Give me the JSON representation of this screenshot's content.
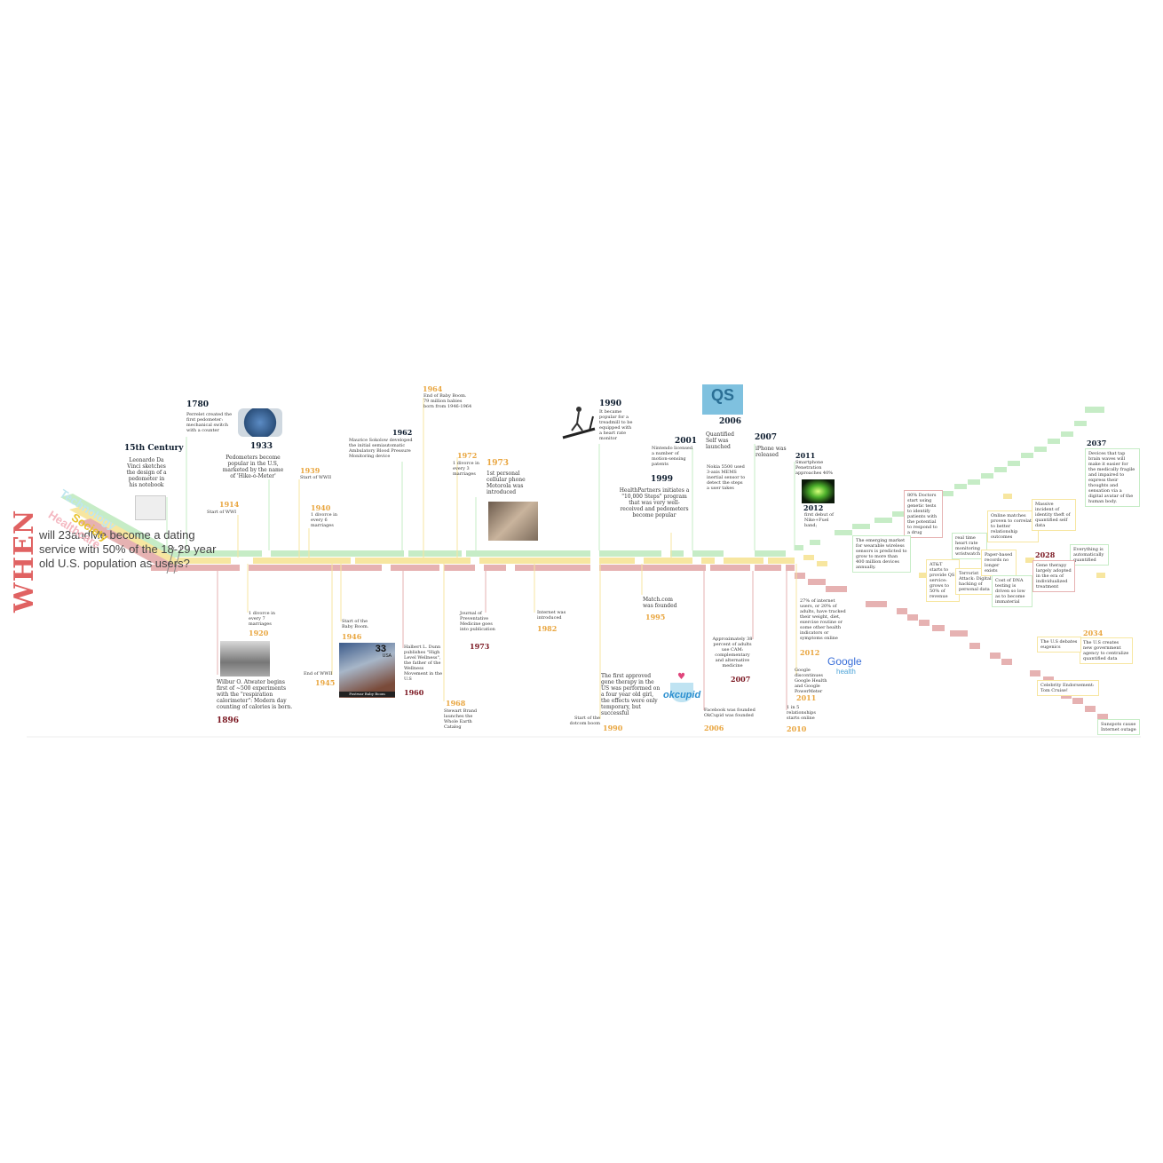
{
  "colors": {
    "technology": "#c6ecc6",
    "society": "#f7e6a0",
    "healthcare": "#e6b2b2",
    "title_red": "#e06262",
    "year_dark": "#0d1c2e",
    "year_orange": "#e9a640",
    "year_red": "#7a1620"
  },
  "title": {
    "when": "WHEN",
    "question": "will 23andMe become a dating service with 50% of the 18-29 year old U.S. population as users?"
  },
  "categories": {
    "technology": "Technology",
    "society": "Society",
    "healthcare": "Healthcare"
  },
  "events_top": [
    {
      "year": "15th Century",
      "text": "Leonardo Da Vinci sketches the design of a pedometer in his notebook"
    },
    {
      "year": "1780",
      "text": "Perrelet created the first pedometer: mechanical switch with a counter"
    },
    {
      "year": "1933",
      "text": "Pedometers become popular in the U.S, marketed by the name of 'Hike-o-Meter'"
    },
    {
      "year": "1914",
      "text": "Start of WWI"
    },
    {
      "year": "1939",
      "text": "Start of WWII"
    },
    {
      "year": "1940",
      "text": "1 divorce in every 6 marriages"
    },
    {
      "year": "1962",
      "text": "Maurice Sokolow developed the initial semiautomatic Ambulatory Blood Pressure Monitoring device"
    },
    {
      "year": "1964",
      "text": "End of Baby Boom. 79 million babies born from 1946-1964"
    },
    {
      "year": "1972",
      "text": "1 divorce in every 3 marriages"
    },
    {
      "year": "1973",
      "text": "1st personal cellular phone Motorola was introduced"
    },
    {
      "year": "1990",
      "text": "It became popular for a treadmill to be equipped with a heart rate monitor"
    },
    {
      "year": "1999",
      "text": "HealthPartners initiates a \"10,000 Steps\" program that was very well-received and pedometers become popular"
    },
    {
      "year": "2001",
      "text": "Nintendo licensed a number of motion-sensing patents"
    },
    {
      "year": "2006",
      "text": "Quantified Self was launched"
    },
    {
      "year": "",
      "text": "Nokia 5500 used 3-axis MEMS inertial sensor to detect the steps a user takes"
    },
    {
      "year": "2007",
      "text": "iPhone was released"
    },
    {
      "year": "2011",
      "text": "Smartphone Penetration approaches 40%"
    },
    {
      "year": "2012",
      "text": "first debut of Nike+Fuel band;"
    }
  ],
  "events_bottom": [
    {
      "year": "1920",
      "text": "1 divorce in every 7 marriages"
    },
    {
      "year": "1896",
      "text": "Wilbur O. Atwater begins first of ~500 experiments with the \"respiration calorimeter\": Modern day counting of calories is born."
    },
    {
      "year": "1946",
      "text": "Start of the Baby Boom."
    },
    {
      "year": "1945",
      "text": "End of WWII"
    },
    {
      "year": "1960",
      "text": "Halbert L. Dunn publishes \"High Level Wellness\", the father of the Wellness Movement in the U.S"
    },
    {
      "year": "1968",
      "text": "Stewart Brand launches the Whole Earth Catalog"
    },
    {
      "year": "1973",
      "text": "Journal of Preventative Medicine goes into publication"
    },
    {
      "year": "1982",
      "text": "Internet was introduced"
    },
    {
      "year": "1995",
      "text": "Match.com was founded"
    },
    {
      "year": "1990",
      "text": "The first approved gene therapy in the US was performed on a four year old girl, the effects were only temporary, but successful"
    },
    {
      "year": "",
      "text": "Start of the dotcom boom"
    },
    {
      "year": "2007",
      "text": "Approximately 38 percent of adults use CAM: complementary and alternative medicine"
    },
    {
      "year": "2006",
      "text": "Facebook was founded OkCupid was founded"
    },
    {
      "year": "2012",
      "text": "27% of internet users, or 20% of adults, have tracked their weight, diet, exercise routine or some other health indicators or symptoms online"
    },
    {
      "year": "2011",
      "text": "Google discontinues Google Health and Google PowerMeter"
    },
    {
      "year": "2010",
      "text": "1 in 5 relationships starts online"
    }
  ],
  "future": [
    {
      "year": "2037",
      "text": "Devices that tap brain waves will make it easier for the medically fragile and impaired to express their thoughts and sensation via a digital avatar of the human body."
    },
    {
      "year": "",
      "text": "80% Doctors start using genetic tests to identify patients with the potential to respond to a drug"
    },
    {
      "year": "",
      "text": "The emerging market for wearable wireless sensors is predicted to grow to more than 400 million devices annually."
    },
    {
      "year": "",
      "text": "real time heart rate monitoring wristwatch"
    },
    {
      "year": "",
      "text": "Online matches proven to correlate to better relationship outcomes"
    },
    {
      "year": "",
      "text": "Massive incident of identity theft of quantified self data"
    },
    {
      "year": "",
      "text": "Everything is automatically quantified"
    },
    {
      "year": "",
      "text": "AT&T starts to provide QS service: grows to 50% of revenue"
    },
    {
      "year": "",
      "text": "Terrorist Attack: Digital hacking of personal data"
    },
    {
      "year": "",
      "text": "Paper-based records no longer exists"
    },
    {
      "year": "2028",
      "text": "Gene therapy largely adopted in the era of individualized treatment"
    },
    {
      "year": "",
      "text": "Cost of DNA testing is driven so low as to become immaterial"
    },
    {
      "year": "2034",
      "text": "The U.S creates new government agency to centralize quantified data"
    },
    {
      "year": "",
      "text": "The U.S debates eugenics"
    },
    {
      "year": "",
      "text": "Celebrity Endorsement: Tom Cruise!"
    },
    {
      "year": "",
      "text": "Sunspots cause Internet outage"
    }
  ],
  "logos": {
    "qs": "QS",
    "okcupid": "okcupid",
    "google": "Google",
    "google_health": "health",
    "stamp": "33",
    "stamp_country": "USA",
    "stamp_caption": "Postwar Baby Boom"
  }
}
